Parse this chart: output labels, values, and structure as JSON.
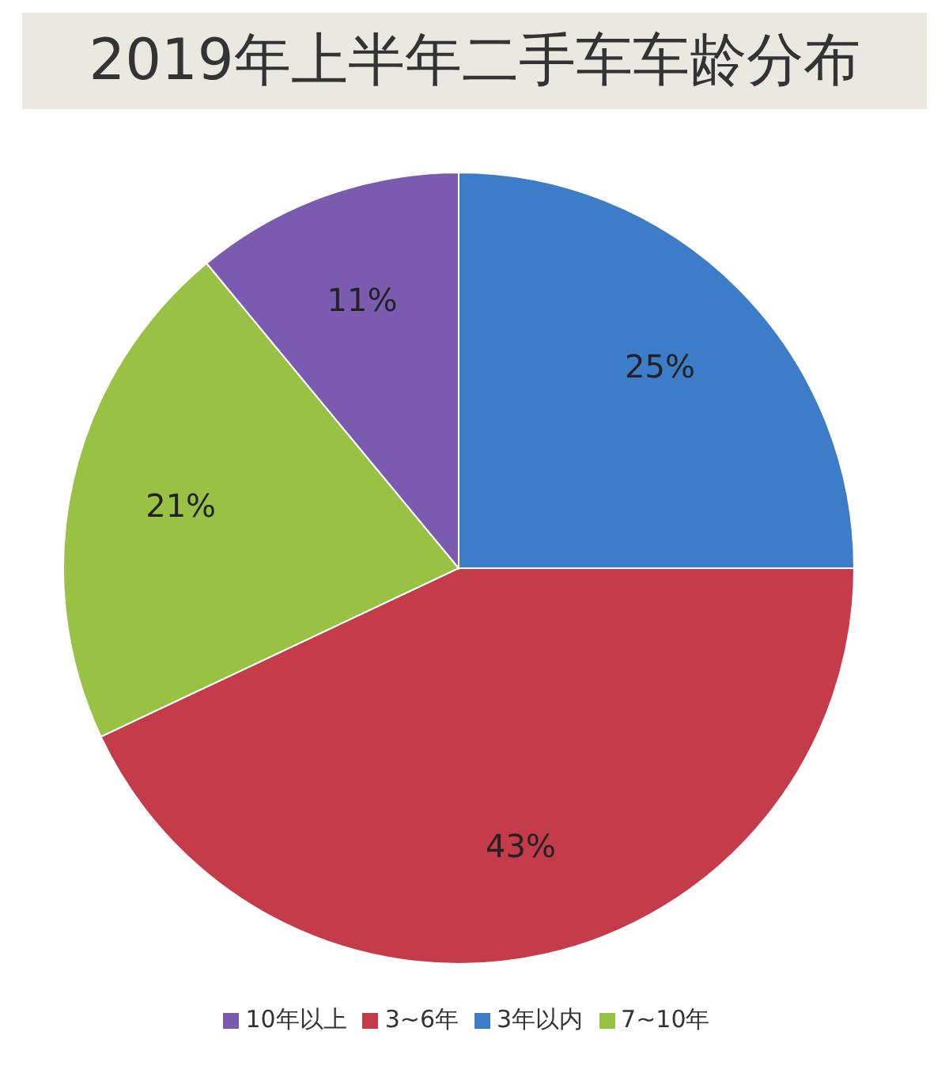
{
  "chart_data": {
    "type": "pie",
    "title": "2019年上半年二手车车龄分布",
    "categories": [
      "3年以内",
      "3~6年",
      "7~10年",
      "10年以上"
    ],
    "values": [
      25,
      43,
      21,
      11
    ],
    "value_labels": [
      "25%",
      "43%",
      "21%",
      "11%"
    ],
    "colors": [
      "#3d7cc8",
      "#c43c4a",
      "#99c143",
      "#7a5bb0"
    ],
    "legend": "bottom"
  }
}
